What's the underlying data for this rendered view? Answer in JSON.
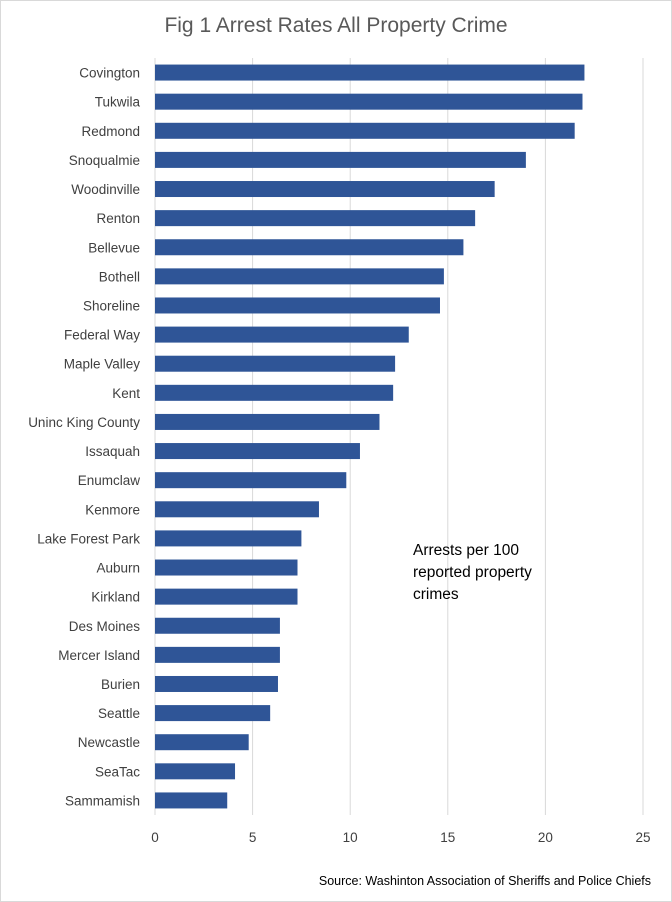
{
  "chart_data": {
    "type": "bar",
    "orientation": "horizontal",
    "title": "Fig 1 Arrest Rates All Property Crime",
    "annotation": [
      "Arrests per 100",
      "reported property",
      "crimes"
    ],
    "source": "Source: Washinton Association of Sheriffs and Police Chiefs",
    "categories": [
      "Covington",
      "Tukwila",
      "Redmond",
      "Snoqualmie",
      "Woodinville",
      "Renton",
      "Bellevue",
      "Bothell",
      "Shoreline",
      "Federal Way",
      "Maple Valley",
      "Kent",
      "Uninc King County",
      "Issaquah",
      "Enumclaw",
      "Kenmore",
      "Lake Forest Park",
      "Auburn",
      "Kirkland",
      "Des Moines",
      "Mercer Island",
      "Burien",
      "Seattle",
      "Newcastle",
      "SeaTac",
      "Sammamish"
    ],
    "values": [
      22.0,
      21.9,
      21.5,
      19.0,
      17.4,
      16.4,
      15.8,
      14.8,
      14.6,
      13.0,
      12.3,
      12.2,
      11.5,
      10.5,
      9.8,
      8.4,
      7.5,
      7.3,
      7.3,
      6.4,
      6.4,
      6.3,
      5.9,
      4.8,
      4.1,
      3.7
    ],
    "xticks": [
      0,
      5,
      10,
      15,
      20,
      25
    ],
    "xlim": [
      0,
      25
    ],
    "xlabel": "",
    "ylabel": "",
    "grid": true,
    "bar_color": "#2f5597"
  }
}
